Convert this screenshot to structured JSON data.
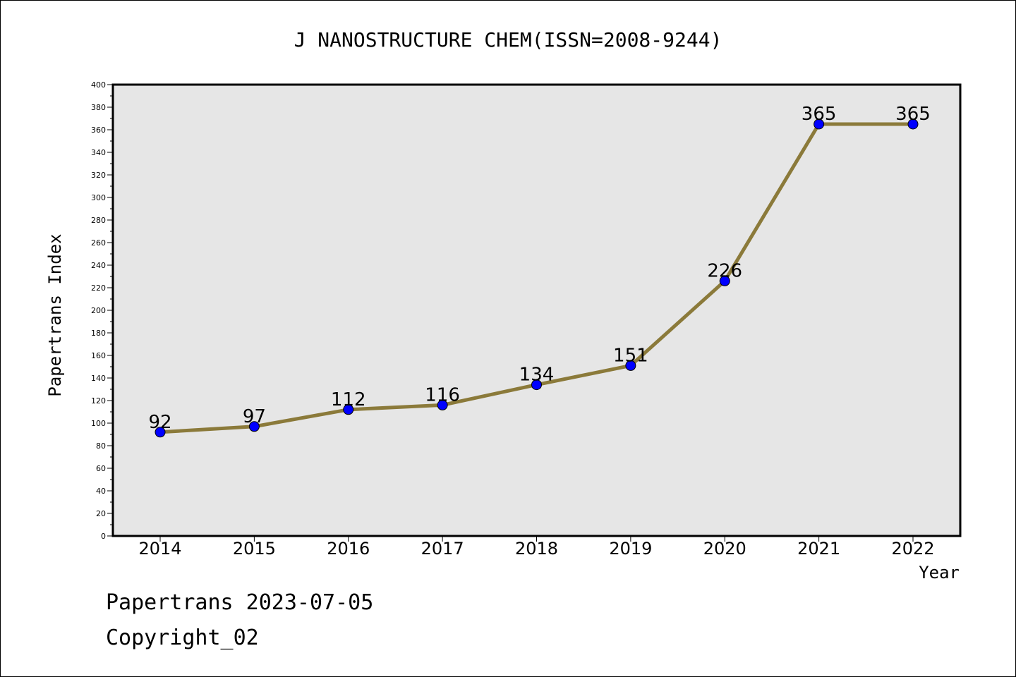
{
  "chart_data": {
    "type": "line",
    "title": "J NANOSTRUCTURE CHEM(ISSN=2008-9244)",
    "xlabel": "Year",
    "ylabel": "Papertrans Index",
    "ylim": [
      0,
      400
    ],
    "yticks": [
      0,
      20,
      40,
      60,
      80,
      100,
      120,
      140,
      160,
      180,
      200,
      220,
      240,
      260,
      280,
      300,
      320,
      340,
      360,
      380,
      400
    ],
    "categories": [
      "2014",
      "2015",
      "2016",
      "2017",
      "2018",
      "2019",
      "2020",
      "2021",
      "2022"
    ],
    "series": [
      {
        "values": [
          92,
          97,
          112,
          116,
          134,
          151,
          226,
          365,
          365
        ]
      }
    ],
    "data_labels": [
      "92",
      "97",
      "112",
      "116",
      "134",
      "151",
      "226",
      "365",
      "365"
    ],
    "grid": false,
    "colors": {
      "line": "#8b7a3a",
      "marker": "#0000ff",
      "plot_bg": "#e6e6e6"
    }
  },
  "footer": {
    "source": "Papertrans 2023-07-05",
    "copyright": "Copyright_02"
  }
}
